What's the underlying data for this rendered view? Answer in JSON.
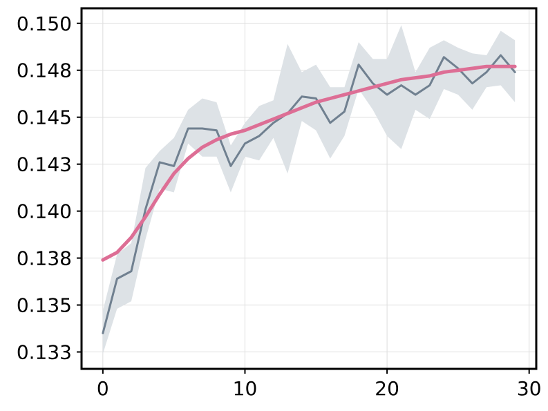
{
  "chart_data": {
    "type": "line",
    "title": "",
    "xlabel": "",
    "ylabel": "",
    "xlim": [
      -1.5,
      30.5
    ],
    "ylim": [
      0.1316,
      0.1508
    ],
    "grid": true,
    "x_ticks": [
      0,
      10,
      20,
      30
    ],
    "y_ticks": [
      0.1325,
      0.135,
      0.1375,
      0.14,
      0.1425,
      0.145,
      0.1475,
      0.15
    ],
    "x_tick_labels": [
      "0",
      "10",
      "20",
      "30"
    ],
    "y_tick_labels": [
      "0.133",
      "0.135",
      "0.138",
      "0.140",
      "0.143",
      "0.145",
      "0.148",
      "0.150"
    ],
    "x": [
      0,
      1,
      2,
      3,
      4,
      5,
      6,
      7,
      8,
      9,
      10,
      11,
      12,
      13,
      14,
      15,
      16,
      17,
      18,
      19,
      20,
      21,
      22,
      23,
      24,
      25,
      26,
      27,
      28,
      29
    ],
    "series": [
      {
        "values": [
          0.1335,
          0.1364,
          0.1368,
          0.1401,
          0.1426,
          0.1424,
          0.1444,
          0.1444,
          0.1443,
          0.1424,
          0.1436,
          0.144,
          0.1447,
          0.1452,
          0.1461,
          0.146,
          0.1447,
          0.1453,
          0.1478,
          0.1468,
          0.1462,
          0.1467,
          0.1462,
          0.1467,
          0.1482,
          0.1476,
          0.1468,
          0.1474,
          0.1483,
          0.1474
        ],
        "band_lower": [
          0.1324,
          0.1348,
          0.1352,
          0.1385,
          0.1412,
          0.141,
          0.1436,
          0.1429,
          0.1429,
          0.141,
          0.1429,
          0.1427,
          0.1439,
          0.142,
          0.1448,
          0.1443,
          0.1428,
          0.144,
          0.1465,
          0.1454,
          0.144,
          0.1433,
          0.1454,
          0.1449,
          0.1465,
          0.1462,
          0.1454,
          0.1466,
          0.1467,
          0.1458
        ],
        "band_upper": [
          0.1347,
          0.1377,
          0.1383,
          0.1423,
          0.1432,
          0.1439,
          0.1454,
          0.146,
          0.1458,
          0.1435,
          0.1447,
          0.1456,
          0.1459,
          0.1489,
          0.1474,
          0.1478,
          0.1466,
          0.1466,
          0.149,
          0.1481,
          0.1481,
          0.1499,
          0.1474,
          0.1487,
          0.1491,
          0.1487,
          0.1484,
          0.1483,
          0.1496,
          0.1491
        ],
        "color": "#708090",
        "band_color": "#dde2e6"
      },
      {
        "values": [
          0.1374,
          0.1378,
          0.1386,
          0.1397,
          0.1409,
          0.142,
          0.1428,
          0.1434,
          0.1438,
          0.1441,
          0.1443,
          0.1446,
          0.1449,
          0.1452,
          0.1455,
          0.1458,
          0.146,
          0.1462,
          0.1464,
          0.1466,
          0.1468,
          0.147,
          0.1471,
          0.1472,
          0.1474,
          0.1475,
          0.1476,
          0.1477,
          0.1477,
          0.1477
        ],
        "color": "#dd6e95"
      }
    ]
  }
}
